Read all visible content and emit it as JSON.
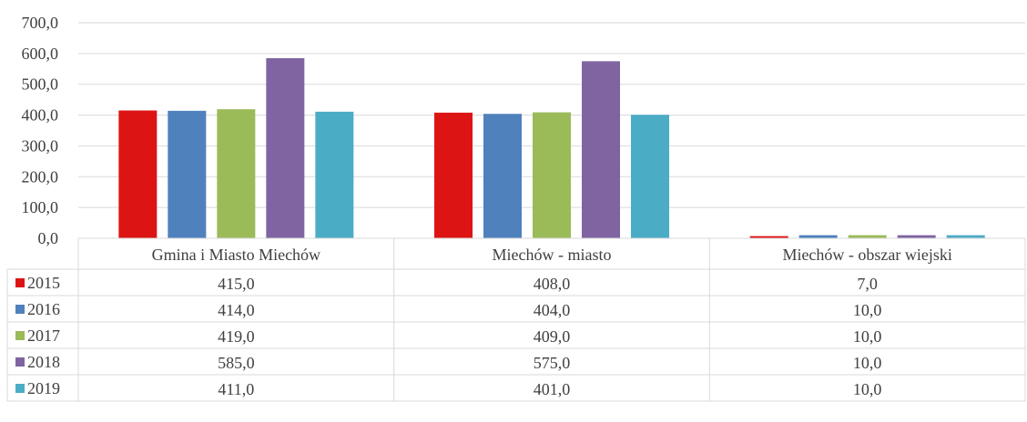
{
  "chart_data": {
    "type": "bar",
    "title": "",
    "xlabel": "",
    "ylabel": "",
    "ylim": [
      0,
      700
    ],
    "yticks": [
      0,
      100,
      200,
      300,
      400,
      500,
      600,
      700
    ],
    "ytick_labels": [
      "0,0",
      "100,0",
      "200,0",
      "300,0",
      "400,0",
      "500,0",
      "600,0",
      "700,0"
    ],
    "grid": true,
    "legend": "data-table-left",
    "categories": [
      "Gmina i Miasto Miechów",
      "Miechów - miasto",
      "Miechów - obszar wiejski"
    ],
    "series": [
      {
        "name": "2015",
        "color": "#dc1514",
        "values": [
          415.0,
          408.0,
          7.0
        ],
        "labels": [
          "415,0",
          "408,0",
          "7,0"
        ]
      },
      {
        "name": "2016",
        "color": "#4f81bd",
        "values": [
          414.0,
          404.0,
          10.0
        ],
        "labels": [
          "414,0",
          "404,0",
          "10,0"
        ]
      },
      {
        "name": "2017",
        "color": "#9bbb59",
        "values": [
          419.0,
          409.0,
          10.0
        ],
        "labels": [
          "419,0",
          "409,0",
          "10,0"
        ]
      },
      {
        "name": "2018",
        "color": "#8064a2",
        "values": [
          585.0,
          575.0,
          10.0
        ],
        "labels": [
          "585,0",
          "575,0",
          "10,0"
        ]
      },
      {
        "name": "2019",
        "color": "#4bacc6",
        "values": [
          411.0,
          401.0,
          10.0
        ],
        "labels": [
          "411,0",
          "401,0",
          "10,0"
        ]
      }
    ]
  }
}
